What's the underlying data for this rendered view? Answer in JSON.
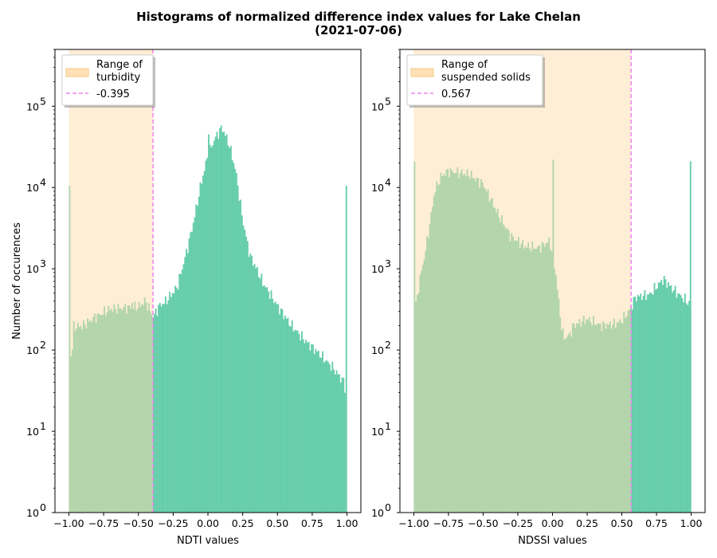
{
  "title_line1": "Histograms of normalized difference index values for Lake Chelan",
  "title_line2": "(2021-07-06)",
  "colors": {
    "bars": "#66cdaa",
    "range_fill": "#ffdead",
    "threshold_line": "#ee82ee",
    "spines": "#000000"
  },
  "chart_data": [
    {
      "type": "bar",
      "subtype": "histogram",
      "xlabel": "NDTI values",
      "ylabel": "Number of occurences",
      "xlim": [
        -1.1,
        1.1
      ],
      "ylim": [
        1,
        500000
      ],
      "yscale": "log",
      "xticks": [
        -1.0,
        -0.75,
        -0.5,
        -0.25,
        0.0,
        0.25,
        0.5,
        0.75,
        1.0
      ],
      "xtick_labels": [
        "−1.00",
        "−0.75",
        "−0.50",
        "−0.25",
        "0.00",
        "0.25",
        "0.50",
        "0.75",
        "1.00"
      ],
      "yticks": [
        1,
        10,
        100,
        1000,
        10000,
        100000
      ],
      "ytick_labels": [
        "10",
        "10",
        "10",
        "10",
        "10",
        "10"
      ],
      "ytick_exponents": [
        "0",
        "1",
        "2",
        "3",
        "4",
        "5"
      ],
      "range_span": [
        -1.0,
        -0.395
      ],
      "threshold": -0.395,
      "legend": {
        "position": "upper left",
        "range_label_line1": "Range of",
        "range_label_line2": "turbidity",
        "threshold_label": "-0.395"
      },
      "hist_anchors": [
        [
          -1.0,
          10500
        ],
        [
          -0.995,
          180
        ],
        [
          -0.98,
          60
        ],
        [
          -0.97,
          190
        ],
        [
          -0.9,
          200
        ],
        [
          -0.8,
          260
        ],
        [
          -0.7,
          320
        ],
        [
          -0.6,
          330
        ],
        [
          -0.5,
          340
        ],
        [
          -0.45,
          400
        ],
        [
          -0.4,
          270
        ],
        [
          -0.39,
          260
        ],
        [
          -0.35,
          350
        ],
        [
          -0.3,
          400
        ],
        [
          -0.22,
          600
        ],
        [
          -0.15,
          1700
        ],
        [
          -0.1,
          4000
        ],
        [
          -0.05,
          11000
        ],
        [
          0.0,
          25000
        ],
        [
          0.05,
          40000
        ],
        [
          0.1,
          55000
        ],
        [
          0.15,
          35000
        ],
        [
          0.2,
          16000
        ],
        [
          0.25,
          4000
        ],
        [
          0.3,
          1500
        ],
        [
          0.4,
          650
        ],
        [
          0.5,
          350
        ],
        [
          0.6,
          200
        ],
        [
          0.7,
          130
        ],
        [
          0.8,
          90
        ],
        [
          0.9,
          60
        ],
        [
          0.98,
          40
        ],
        [
          0.995,
          26
        ],
        [
          1.0,
          10500
        ]
      ],
      "hist_spikes": [
        [
          0.0,
          45000
        ],
        [
          -0.55,
          380
        ]
      ]
    },
    {
      "type": "bar",
      "subtype": "histogram",
      "xlabel": "NDSSI values",
      "ylabel": "",
      "xlim": [
        -1.1,
        1.1
      ],
      "ylim": [
        1,
        500000
      ],
      "yscale": "log",
      "xticks": [
        -1.0,
        -0.75,
        -0.5,
        -0.25,
        0.0,
        0.25,
        0.5,
        0.75,
        1.0
      ],
      "xtick_labels": [
        "−1.00",
        "−0.75",
        "−0.50",
        "−0.25",
        "0.00",
        "0.25",
        "0.50",
        "0.75",
        "1.00"
      ],
      "yticks": [
        1,
        10,
        100,
        1000,
        10000,
        100000
      ],
      "ytick_labels": [
        "10",
        "10",
        "10",
        "10",
        "10",
        "10"
      ],
      "ytick_exponents": [
        "0",
        "1",
        "2",
        "3",
        "4",
        "5"
      ],
      "range_span": [
        -1.0,
        0.567
      ],
      "threshold": 0.567,
      "legend": {
        "position": "upper left",
        "range_label_line1": "Range of",
        "range_label_line2": "suspended solids",
        "threshold_label": "0.567"
      },
      "hist_anchors": [
        [
          -1.0,
          21000
        ],
        [
          -0.995,
          340
        ],
        [
          -0.98,
          380
        ],
        [
          -0.96,
          700
        ],
        [
          -0.92,
          1500
        ],
        [
          -0.88,
          4000
        ],
        [
          -0.85,
          9000
        ],
        [
          -0.8,
          14000
        ],
        [
          -0.75,
          16000
        ],
        [
          -0.6,
          14500
        ],
        [
          -0.5,
          11000
        ],
        [
          -0.4,
          5000
        ],
        [
          -0.3,
          2500
        ],
        [
          -0.2,
          1900
        ],
        [
          -0.1,
          1800
        ],
        [
          -0.02,
          2200
        ],
        [
          0.02,
          1000
        ],
        [
          0.06,
          220
        ],
        [
          0.08,
          140
        ],
        [
          0.12,
          150
        ],
        [
          0.15,
          200
        ],
        [
          0.25,
          240
        ],
        [
          0.35,
          200
        ],
        [
          0.45,
          210
        ],
        [
          0.5,
          230
        ],
        [
          0.55,
          300
        ],
        [
          0.6,
          450
        ],
        [
          0.7,
          480
        ],
        [
          0.75,
          600
        ],
        [
          0.8,
          750
        ],
        [
          0.85,
          600
        ],
        [
          0.9,
          500
        ],
        [
          0.98,
          380
        ],
        [
          0.995,
          360
        ],
        [
          1.0,
          21000
        ]
      ],
      "hist_spikes": [
        [
          0.0,
          22000
        ]
      ]
    }
  ]
}
